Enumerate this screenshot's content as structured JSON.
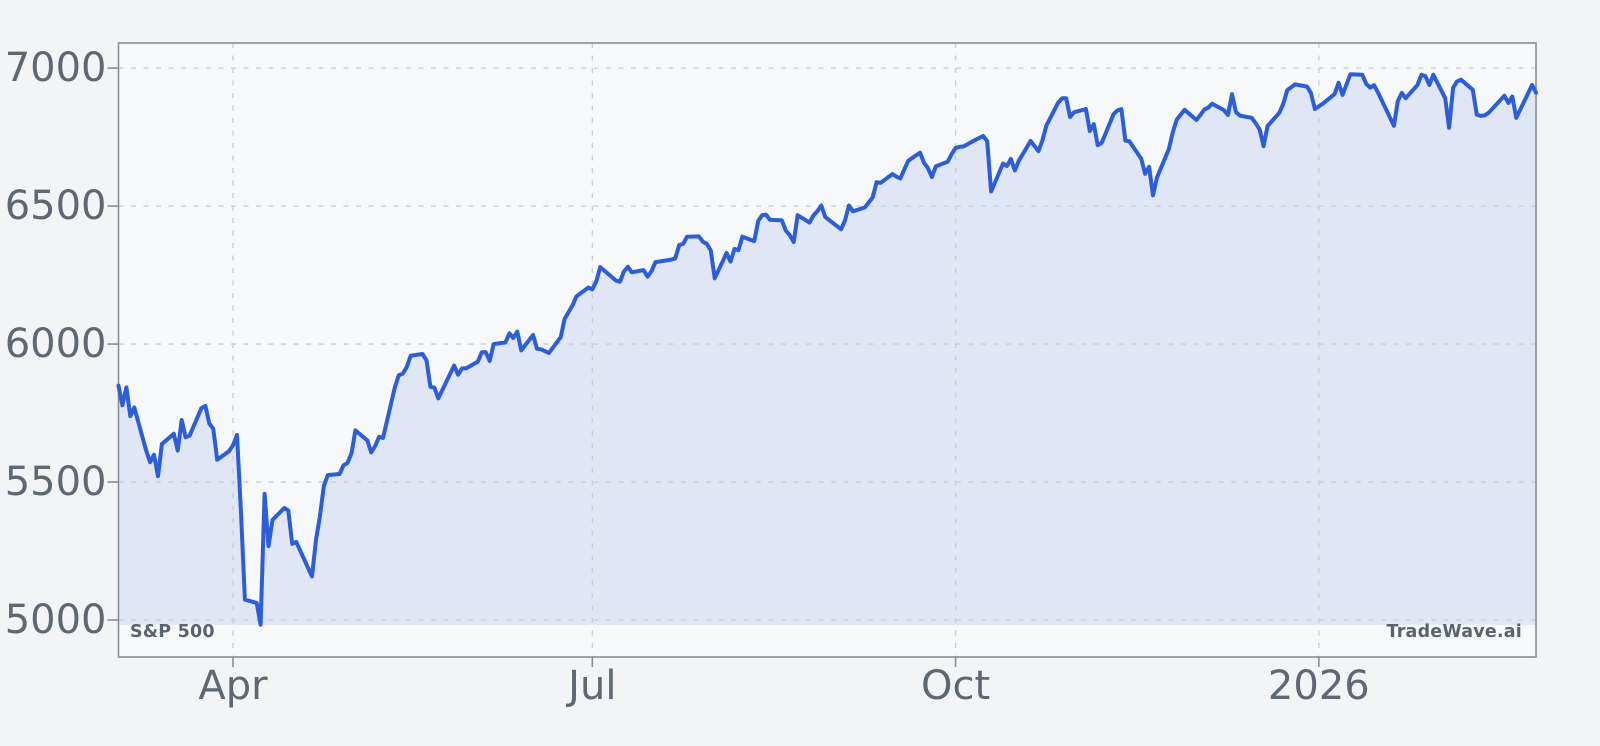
{
  "chart_data": {
    "type": "area",
    "title": "",
    "series_label": "S&P 500",
    "watermark": "TradeWave.ai",
    "line_color": "#2b5ed8",
    "fill_color": "rgba(43,94,216,0.11)",
    "grid": "dashed",
    "legend_position": "none",
    "xlabel": "",
    "ylabel": "",
    "ylim": [
      4866,
      7091
    ],
    "x_domain": [
      "2025-03-03",
      "2026-02-25"
    ],
    "y_ticks": [
      {
        "value": 7000,
        "label": "7000"
      },
      {
        "value": 6500,
        "label": "6500"
      },
      {
        "value": 6000,
        "label": "6000"
      },
      {
        "value": 5500,
        "label": "5500"
      },
      {
        "value": 5000,
        "label": "5000"
      }
    ],
    "x_ticks": [
      {
        "date": "2025-04-01",
        "label": "Apr"
      },
      {
        "date": "2025-07-01",
        "label": "Jul"
      },
      {
        "date": "2025-10-01",
        "label": "Oct"
      },
      {
        "date": "2026-01-01",
        "label": "2026"
      }
    ],
    "points": [
      [
        "2025-03-03",
        5849
      ],
      [
        "2025-03-04",
        5778
      ],
      [
        "2025-03-05",
        5843
      ],
      [
        "2025-03-06",
        5739
      ],
      [
        "2025-03-07",
        5770
      ],
      [
        "2025-03-10",
        5615
      ],
      [
        "2025-03-11",
        5572
      ],
      [
        "2025-03-12",
        5599
      ],
      [
        "2025-03-13",
        5521
      ],
      [
        "2025-03-14",
        5638
      ],
      [
        "2025-03-17",
        5675
      ],
      [
        "2025-03-18",
        5614
      ],
      [
        "2025-03-19",
        5725
      ],
      [
        "2025-03-20",
        5662
      ],
      [
        "2025-03-21",
        5668
      ],
      [
        "2025-03-24",
        5768
      ],
      [
        "2025-03-25",
        5776
      ],
      [
        "2025-03-26",
        5712
      ],
      [
        "2025-03-27",
        5693
      ],
      [
        "2025-03-28",
        5581
      ],
      [
        "2025-03-31",
        5612
      ],
      [
        "2025-04-01",
        5633
      ],
      [
        "2025-04-02",
        5671
      ],
      [
        "2025-04-03",
        5396
      ],
      [
        "2025-04-04",
        5074
      ],
      [
        "2025-04-07",
        5062
      ],
      [
        "2025-04-08",
        4983
      ],
      [
        "2025-04-09",
        5457
      ],
      [
        "2025-04-10",
        5268
      ],
      [
        "2025-04-11",
        5363
      ],
      [
        "2025-04-14",
        5406
      ],
      [
        "2025-04-15",
        5397
      ],
      [
        "2025-04-16",
        5276
      ],
      [
        "2025-04-17",
        5283
      ],
      [
        "2025-04-21",
        5158
      ],
      [
        "2025-04-22",
        5288
      ],
      [
        "2025-04-23",
        5376
      ],
      [
        "2025-04-24",
        5485
      ],
      [
        "2025-04-25",
        5525
      ],
      [
        "2025-04-28",
        5529
      ],
      [
        "2025-04-29",
        5561
      ],
      [
        "2025-04-30",
        5569
      ],
      [
        "2025-05-01",
        5604
      ],
      [
        "2025-05-02",
        5687
      ],
      [
        "2025-05-05",
        5651
      ],
      [
        "2025-05-06",
        5607
      ],
      [
        "2025-05-07",
        5631
      ],
      [
        "2025-05-08",
        5664
      ],
      [
        "2025-05-09",
        5660
      ],
      [
        "2025-05-12",
        5844
      ],
      [
        "2025-05-13",
        5887
      ],
      [
        "2025-05-14",
        5893
      ],
      [
        "2025-05-15",
        5916
      ],
      [
        "2025-05-16",
        5958
      ],
      [
        "2025-05-19",
        5964
      ],
      [
        "2025-05-20",
        5941
      ],
      [
        "2025-05-21",
        5845
      ],
      [
        "2025-05-22",
        5842
      ],
      [
        "2025-05-23",
        5803
      ],
      [
        "2025-05-27",
        5922
      ],
      [
        "2025-05-28",
        5889
      ],
      [
        "2025-05-29",
        5912
      ],
      [
        "2025-05-30",
        5912
      ],
      [
        "2025-06-02",
        5936
      ],
      [
        "2025-06-03",
        5970
      ],
      [
        "2025-06-04",
        5971
      ],
      [
        "2025-06-05",
        5939
      ],
      [
        "2025-06-06",
        6000
      ],
      [
        "2025-06-09",
        6006
      ],
      [
        "2025-06-10",
        6039
      ],
      [
        "2025-06-11",
        6022
      ],
      [
        "2025-06-12",
        6045
      ],
      [
        "2025-06-13",
        5977
      ],
      [
        "2025-06-16",
        6033
      ],
      [
        "2025-06-17",
        5983
      ],
      [
        "2025-06-18",
        5981
      ],
      [
        "2025-06-20",
        5968
      ],
      [
        "2025-06-23",
        6025
      ],
      [
        "2025-06-24",
        6092
      ],
      [
        "2025-06-26",
        6141
      ],
      [
        "2025-06-27",
        6173
      ],
      [
        "2025-06-30",
        6205
      ],
      [
        "2025-07-01",
        6198
      ],
      [
        "2025-07-02",
        6227
      ],
      [
        "2025-07-03",
        6279
      ],
      [
        "2025-07-07",
        6230
      ],
      [
        "2025-07-08",
        6226
      ],
      [
        "2025-07-09",
        6263
      ],
      [
        "2025-07-10",
        6280
      ],
      [
        "2025-07-11",
        6260
      ],
      [
        "2025-07-14",
        6268
      ],
      [
        "2025-07-15",
        6244
      ],
      [
        "2025-07-16",
        6264
      ],
      [
        "2025-07-17",
        6297
      ],
      [
        "2025-07-21",
        6306
      ],
      [
        "2025-07-22",
        6310
      ],
      [
        "2025-07-23",
        6359
      ],
      [
        "2025-07-24",
        6363
      ],
      [
        "2025-07-25",
        6389
      ],
      [
        "2025-07-28",
        6390
      ],
      [
        "2025-07-29",
        6371
      ],
      [
        "2025-07-30",
        6363
      ],
      [
        "2025-07-31",
        6339
      ],
      [
        "2025-08-01",
        6238
      ],
      [
        "2025-08-04",
        6330
      ],
      [
        "2025-08-05",
        6299
      ],
      [
        "2025-08-06",
        6345
      ],
      [
        "2025-08-07",
        6340
      ],
      [
        "2025-08-08",
        6389
      ],
      [
        "2025-08-11",
        6373
      ],
      [
        "2025-08-12",
        6446
      ],
      [
        "2025-08-13",
        6467
      ],
      [
        "2025-08-14",
        6469
      ],
      [
        "2025-08-15",
        6450
      ],
      [
        "2025-08-18",
        6449
      ],
      [
        "2025-08-19",
        6411
      ],
      [
        "2025-08-20",
        6395
      ],
      [
        "2025-08-21",
        6370
      ],
      [
        "2025-08-22",
        6467
      ],
      [
        "2025-08-25",
        6440
      ],
      [
        "2025-08-26",
        6466
      ],
      [
        "2025-08-27",
        6482
      ],
      [
        "2025-08-28",
        6502
      ],
      [
        "2025-08-29",
        6460
      ],
      [
        "2025-09-02",
        6416
      ],
      [
        "2025-09-03",
        6448
      ],
      [
        "2025-09-04",
        6502
      ],
      [
        "2025-09-05",
        6481
      ],
      [
        "2025-09-08",
        6495
      ],
      [
        "2025-09-09",
        6513
      ],
      [
        "2025-09-10",
        6532
      ],
      [
        "2025-09-11",
        6587
      ],
      [
        "2025-09-12",
        6584
      ],
      [
        "2025-09-15",
        6616
      ],
      [
        "2025-09-16",
        6607
      ],
      [
        "2025-09-17",
        6600
      ],
      [
        "2025-09-18",
        6632
      ],
      [
        "2025-09-19",
        6664
      ],
      [
        "2025-09-22",
        6694
      ],
      [
        "2025-09-23",
        6657
      ],
      [
        "2025-09-24",
        6638
      ],
      [
        "2025-09-25",
        6605
      ],
      [
        "2025-09-26",
        6644
      ],
      [
        "2025-09-29",
        6661
      ],
      [
        "2025-09-30",
        6688
      ],
      [
        "2025-10-01",
        6711
      ],
      [
        "2025-10-02",
        6715
      ],
      [
        "2025-10-03",
        6716
      ],
      [
        "2025-10-06",
        6740
      ],
      [
        "2025-10-08",
        6754
      ],
      [
        "2025-10-09",
        6735
      ],
      [
        "2025-10-10",
        6553
      ],
      [
        "2025-10-13",
        6654
      ],
      [
        "2025-10-14",
        6645
      ],
      [
        "2025-10-15",
        6671
      ],
      [
        "2025-10-16",
        6629
      ],
      [
        "2025-10-17",
        6664
      ],
      [
        "2025-10-20",
        6736
      ],
      [
        "2025-10-22",
        6699
      ],
      [
        "2025-10-23",
        6738
      ],
      [
        "2025-10-24",
        6792
      ],
      [
        "2025-10-27",
        6875
      ],
      [
        "2025-10-28",
        6891
      ],
      [
        "2025-10-29",
        6891
      ],
      [
        "2025-10-30",
        6823
      ],
      [
        "2025-10-31",
        6840
      ],
      [
        "2025-11-03",
        6852
      ],
      [
        "2025-11-04",
        6772
      ],
      [
        "2025-11-05",
        6797
      ],
      [
        "2025-11-06",
        6721
      ],
      [
        "2025-11-07",
        6729
      ],
      [
        "2025-11-10",
        6833
      ],
      [
        "2025-11-11",
        6847
      ],
      [
        "2025-11-12",
        6851
      ],
      [
        "2025-11-13",
        6737
      ],
      [
        "2025-11-14",
        6735
      ],
      [
        "2025-11-17",
        6672
      ],
      [
        "2025-11-18",
        6617
      ],
      [
        "2025-11-19",
        6642
      ],
      [
        "2025-11-20",
        6539
      ],
      [
        "2025-11-21",
        6603
      ],
      [
        "2025-11-24",
        6706
      ],
      [
        "2025-11-25",
        6766
      ],
      [
        "2025-11-26",
        6813
      ],
      [
        "2025-11-28",
        6849
      ],
      [
        "2025-12-01",
        6812
      ],
      [
        "2025-12-02",
        6830
      ],
      [
        "2025-12-03",
        6850
      ],
      [
        "2025-12-04",
        6857
      ],
      [
        "2025-12-05",
        6871
      ],
      [
        "2025-12-08",
        6847
      ],
      [
        "2025-12-09",
        6830
      ],
      [
        "2025-12-10",
        6906
      ],
      [
        "2025-12-11",
        6841
      ],
      [
        "2025-12-12",
        6828
      ],
      [
        "2025-12-15",
        6820
      ],
      [
        "2025-12-16",
        6800
      ],
      [
        "2025-12-17",
        6778
      ],
      [
        "2025-12-18",
        6717
      ],
      [
        "2025-12-19",
        6790
      ],
      [
        "2025-12-22",
        6838
      ],
      [
        "2025-12-23",
        6871
      ],
      [
        "2025-12-24",
        6920
      ],
      [
        "2025-12-26",
        6941
      ],
      [
        "2025-12-29",
        6933
      ],
      [
        "2025-12-30",
        6910
      ],
      [
        "2025-12-31",
        6852
      ],
      [
        "2026-01-02",
        6871
      ],
      [
        "2026-01-05",
        6906
      ],
      [
        "2026-01-06",
        6947
      ],
      [
        "2026-01-07",
        6903
      ],
      [
        "2026-01-08",
        6941
      ],
      [
        "2026-01-09",
        6978
      ],
      [
        "2026-01-12",
        6976
      ],
      [
        "2026-01-13",
        6943
      ],
      [
        "2026-01-14",
        6929
      ],
      [
        "2026-01-15",
        6938
      ],
      [
        "2026-01-16",
        6911
      ],
      [
        "2026-01-20",
        6791
      ],
      [
        "2026-01-21",
        6881
      ],
      [
        "2026-01-22",
        6910
      ],
      [
        "2026-01-23",
        6891
      ],
      [
        "2026-01-26",
        6939
      ],
      [
        "2026-01-27",
        6976
      ],
      [
        "2026-01-28",
        6971
      ],
      [
        "2026-01-29",
        6939
      ],
      [
        "2026-01-30",
        6976
      ],
      [
        "2026-02-02",
        6891
      ],
      [
        "2026-02-03",
        6784
      ],
      [
        "2026-02-04",
        6929
      ],
      [
        "2026-02-05",
        6951
      ],
      [
        "2026-02-06",
        6958
      ],
      [
        "2026-02-09",
        6921
      ],
      [
        "2026-02-10",
        6831
      ],
      [
        "2026-02-11",
        6827
      ],
      [
        "2026-02-12",
        6829
      ],
      [
        "2026-02-13",
        6838
      ],
      [
        "2026-02-17",
        6900
      ],
      [
        "2026-02-18",
        6874
      ],
      [
        "2026-02-19",
        6897
      ],
      [
        "2026-02-20",
        6820
      ],
      [
        "2026-02-24",
        6939
      ],
      [
        "2026-02-25",
        6911
      ]
    ]
  },
  "colors": {
    "figure_bg": "#f2f4f6",
    "axes_bg": "#f7f8fa",
    "frame": "#8a8e97",
    "grid": "#c9ced5",
    "tick_text": "#5f6772",
    "corner_text": "#5b6371"
  }
}
